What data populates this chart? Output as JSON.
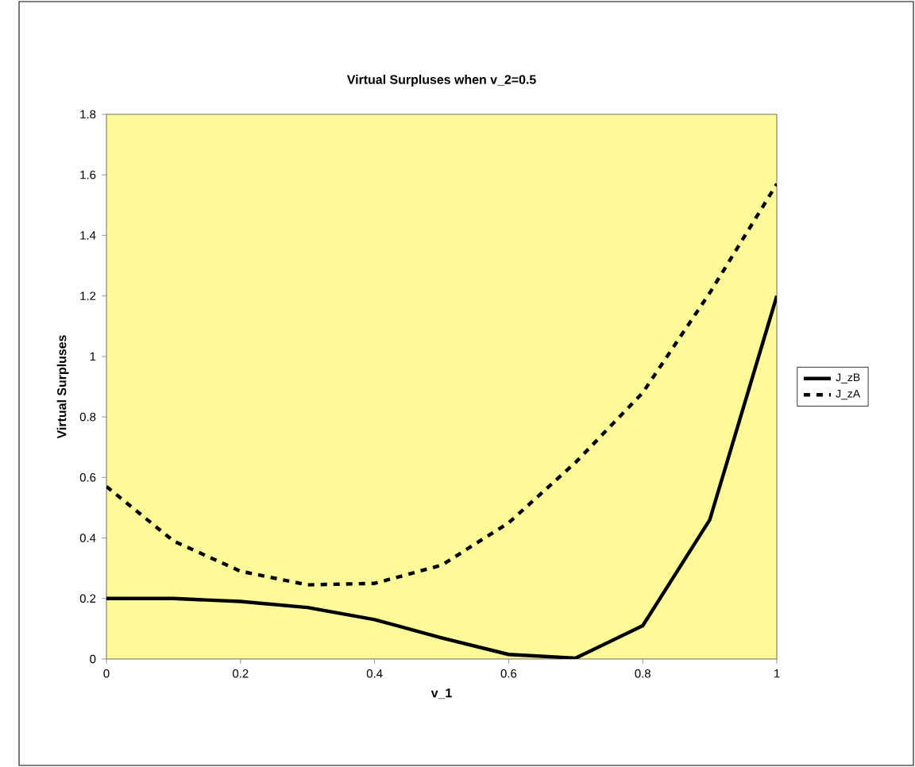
{
  "chart_data": {
    "type": "line",
    "title": "Virtual Surpluses when v_2=0.5",
    "xlabel": "v_1",
    "ylabel": "Virtual Surpluses",
    "x": [
      0,
      0.1,
      0.2,
      0.3,
      0.4,
      0.5,
      0.6,
      0.7,
      0.8,
      0.9,
      1
    ],
    "series": [
      {
        "name": "J_zB",
        "color": "#000000",
        "line_style": "solid",
        "values": [
          0.2,
          0.2,
          0.19,
          0.17,
          0.13,
          0.07,
          0.015,
          0.003,
          0.11,
          0.46,
          1.2
        ]
      },
      {
        "name": "J_zA",
        "color": "#000000",
        "line_style": "dashed",
        "values": [
          0.57,
          0.39,
          0.29,
          0.245,
          0.25,
          0.31,
          0.45,
          0.65,
          0.88,
          1.21,
          1.57
        ]
      }
    ],
    "xlim": [
      0,
      1
    ],
    "xticks": [
      0,
      0.2,
      0.4,
      0.6,
      0.8,
      1
    ],
    "ylim": [
      0,
      1.8
    ],
    "yticks": [
      0,
      0.2,
      0.4,
      0.6,
      0.8,
      1,
      1.2,
      1.4,
      1.6,
      1.8
    ],
    "grid": false,
    "legend": "right",
    "marker": "none"
  }
}
